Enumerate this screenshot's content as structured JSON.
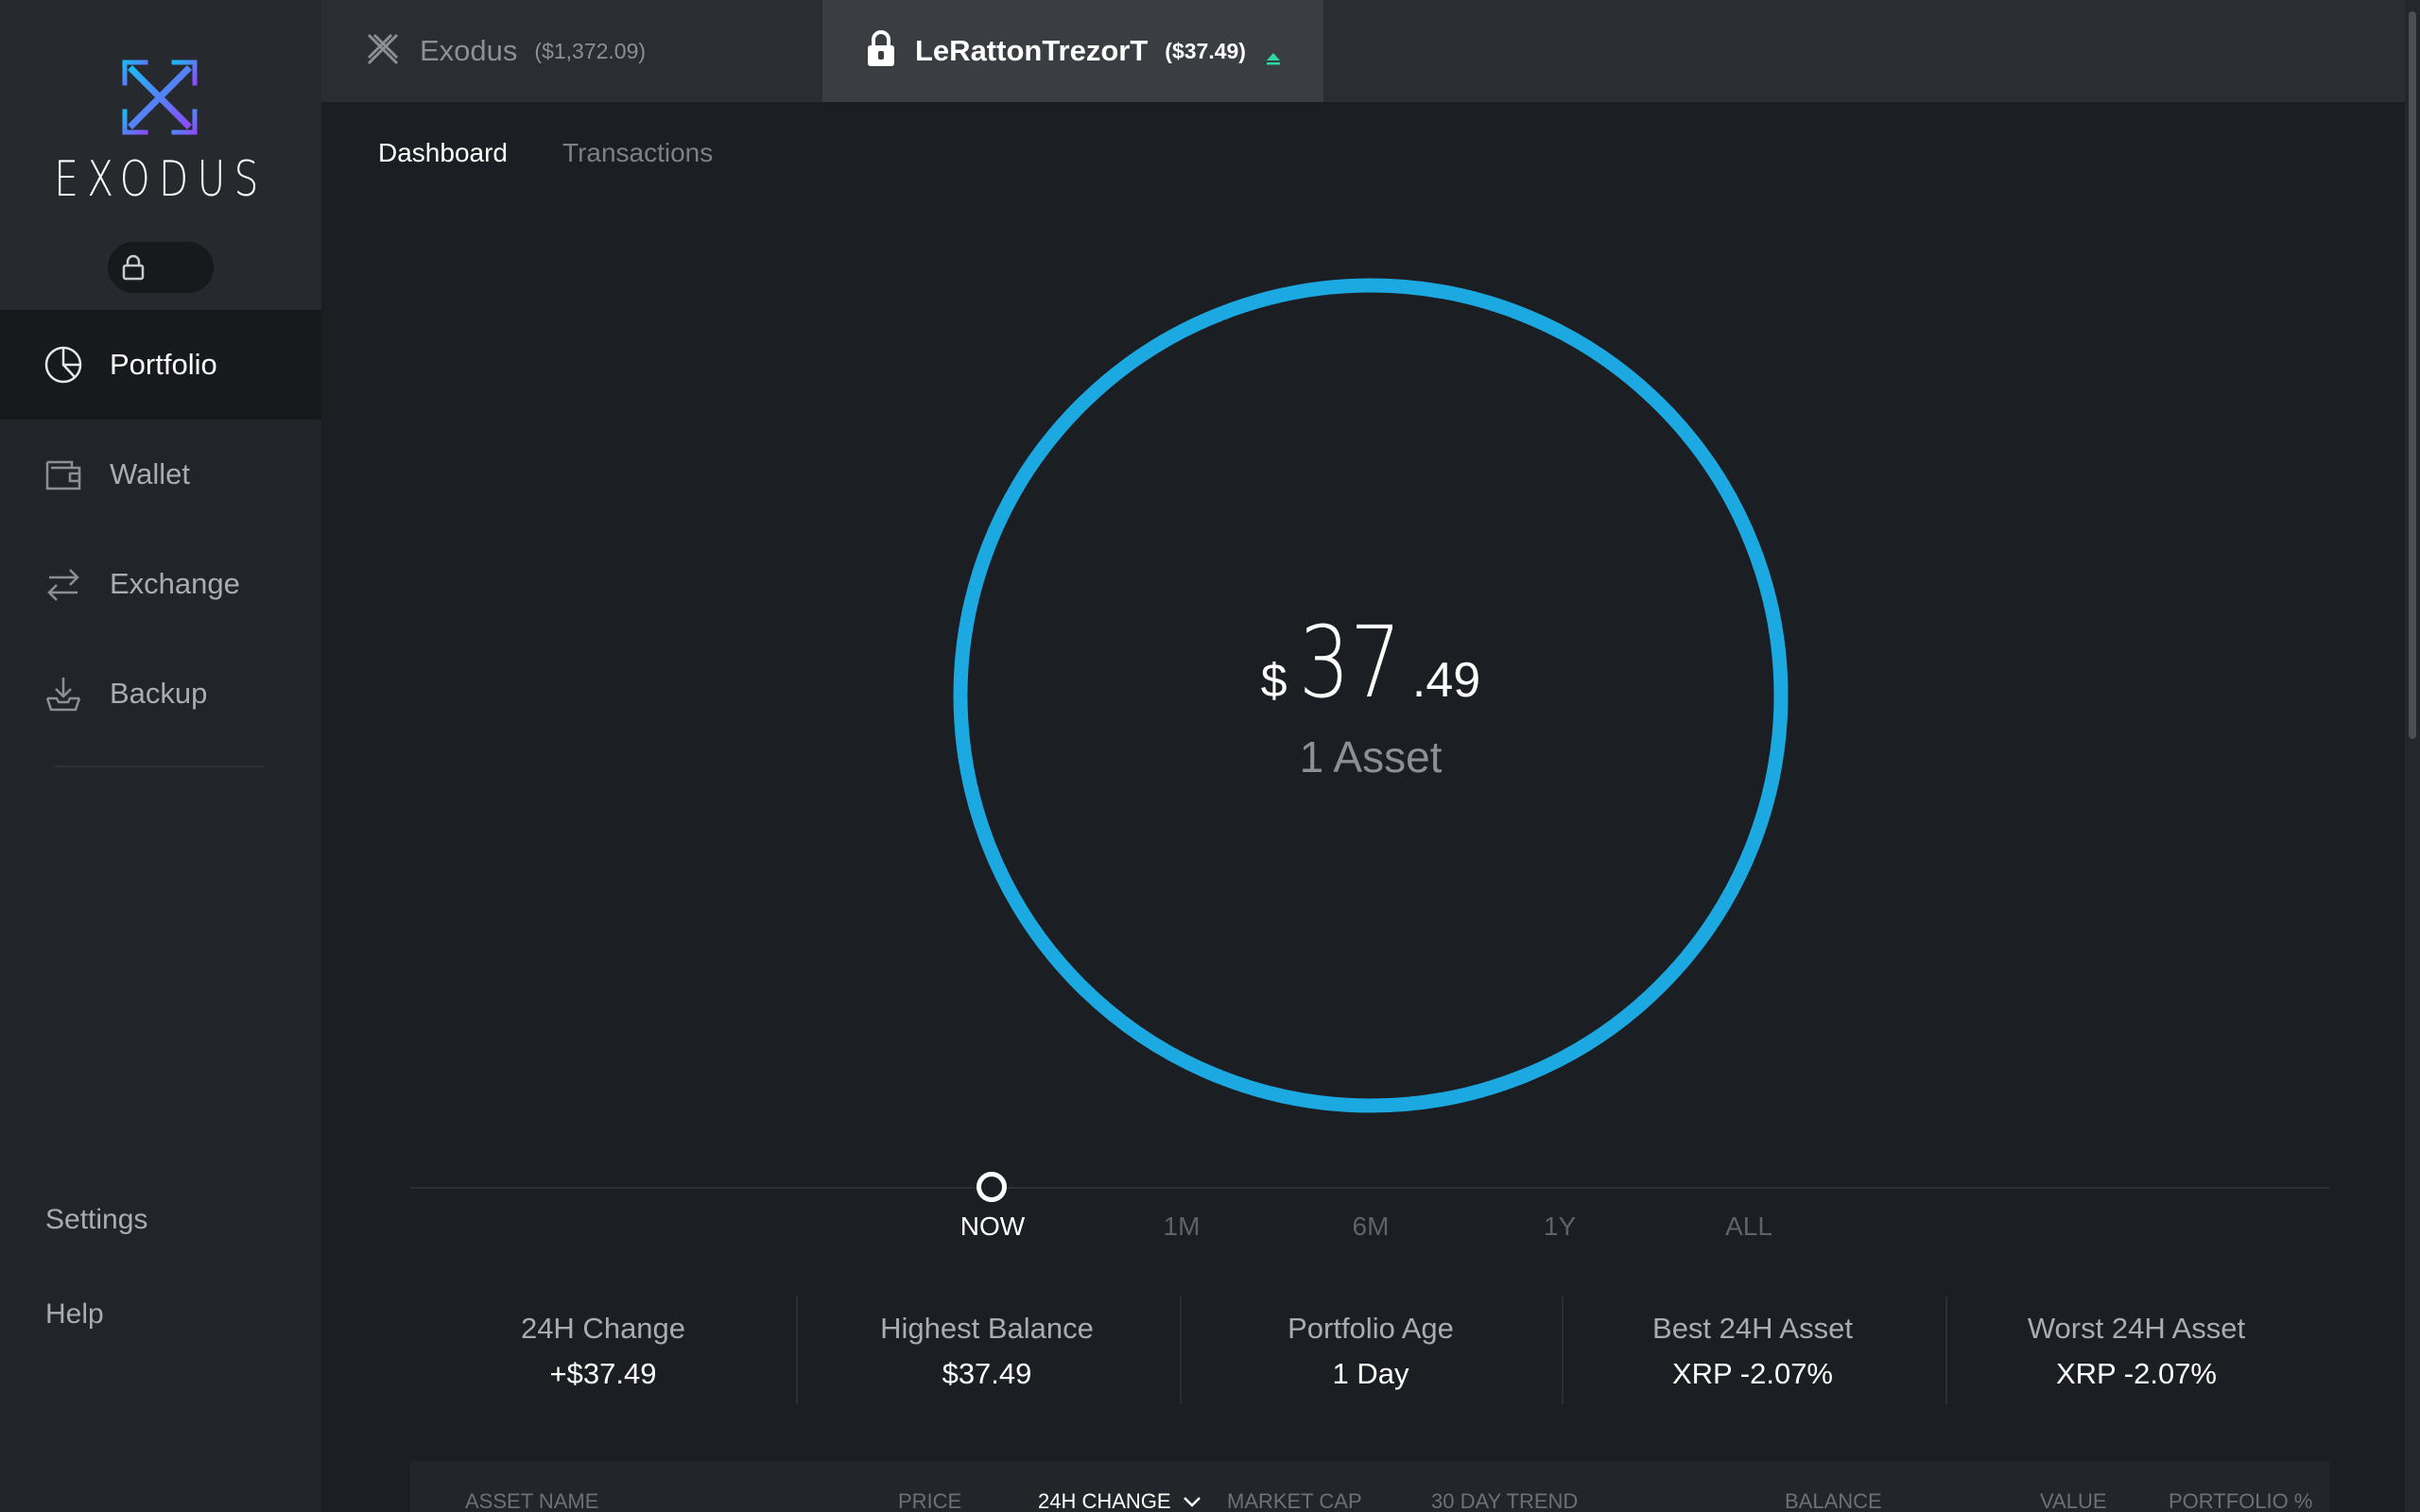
{
  "app": {
    "brand": "EXODUS"
  },
  "sidebar": {
    "items": [
      {
        "label": "Portfolio",
        "icon": "pie-chart-icon"
      },
      {
        "label": "Wallet",
        "icon": "wallet-icon"
      },
      {
        "label": "Exchange",
        "icon": "exchange-arrows-icon"
      },
      {
        "label": "Backup",
        "icon": "backup-download-icon"
      }
    ],
    "settings": "Settings",
    "help": "Help"
  },
  "wallets": [
    {
      "name": "Exodus",
      "value": "($1,372.09)"
    },
    {
      "name": "LeRattonTrezorT",
      "value": "($37.49)"
    }
  ],
  "subtabs": [
    "Dashboard",
    "Transactions"
  ],
  "portfolio": {
    "currency": "$",
    "integer": "37",
    "decimal": ".49",
    "asset_count": "1 Asset"
  },
  "ranges": [
    "NOW",
    "1M",
    "6M",
    "1Y",
    "ALL"
  ],
  "stats": [
    {
      "label": "24H Change",
      "value": "+$37.49"
    },
    {
      "label": "Highest Balance",
      "value": "$37.49"
    },
    {
      "label": "Portfolio Age",
      "value": "1 Day"
    },
    {
      "label": "Best 24H Asset",
      "value": "XRP -2.07%"
    },
    {
      "label": "Worst 24H Asset",
      "value": "XRP -2.07%"
    }
  ],
  "table": {
    "headers": [
      "ASSET NAME",
      "PRICE",
      "24H CHANGE",
      "MARKET CAP",
      "30 DAY TREND",
      "BALANCE",
      "VALUE",
      "PORTFOLIO %"
    ]
  },
  "colors": {
    "ring": "#1ca8e1",
    "eject_indicator": "#2bd9a6",
    "logo_gradient": [
      "#8b4dff",
      "#1fb6f2"
    ]
  }
}
